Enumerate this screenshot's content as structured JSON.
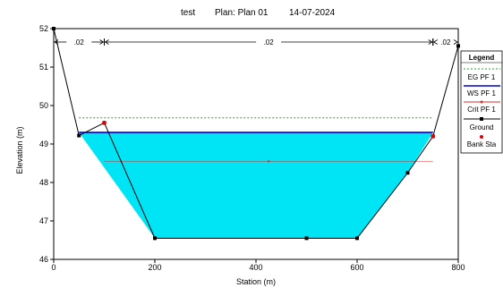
{
  "title_parts": {
    "name": "test",
    "plan": "Plan: Plan 01",
    "date": "14-07-2024"
  },
  "chart_data": {
    "type": "line",
    "title": "test     Plan: Plan 01     14-07-2024",
    "xlabel": "Station (m)",
    "ylabel": "Elevation (m)",
    "xlim": [
      0,
      800
    ],
    "ylim": [
      46,
      52
    ],
    "xticks": [
      0,
      200,
      400,
      600,
      800
    ],
    "yticks": [
      46,
      47,
      48,
      49,
      50,
      51,
      52
    ],
    "grid": false,
    "legend_position": "right",
    "mannings_n": [
      {
        "from": 0,
        "to": 100,
        "label": ".02"
      },
      {
        "from": 100,
        "to": 750,
        "label": ".02"
      },
      {
        "from": 750,
        "to": 800,
        "label": ".02"
      }
    ],
    "series": [
      {
        "name": "EG PF 1",
        "color": "#2fa02f",
        "style": "dashed",
        "x": [
          50,
          750
        ],
        "y": [
          49.68,
          49.68
        ]
      },
      {
        "name": "WS PF 1",
        "color": "#0000cc",
        "style": "solid",
        "fill": "#00e5f5",
        "x": [
          50,
          750
        ],
        "y": [
          49.3,
          49.3
        ]
      },
      {
        "name": "Crit PF 1",
        "color": "#d32f2f",
        "style": "solid",
        "x": [
          100,
          750
        ],
        "y": [
          48.55,
          48.55
        ]
      },
      {
        "name": "Ground",
        "color": "#000000",
        "style": "solid",
        "x": [
          0,
          50,
          100,
          200,
          500,
          600,
          700,
          750,
          800
        ],
        "y": [
          52,
          49.22,
          49.55,
          46.55,
          46.55,
          46.55,
          48.25,
          49.2,
          51.55
        ]
      },
      {
        "name": "Bank Sta",
        "color": "#dd0000",
        "style": "markers",
        "x": [
          100,
          750
        ],
        "y": [
          49.55,
          49.2
        ]
      }
    ]
  },
  "legend": {
    "title": "Legend",
    "items": [
      "EG PF 1",
      "WS PF 1",
      "Crit PF 1",
      "Ground",
      "Bank Sta"
    ]
  }
}
